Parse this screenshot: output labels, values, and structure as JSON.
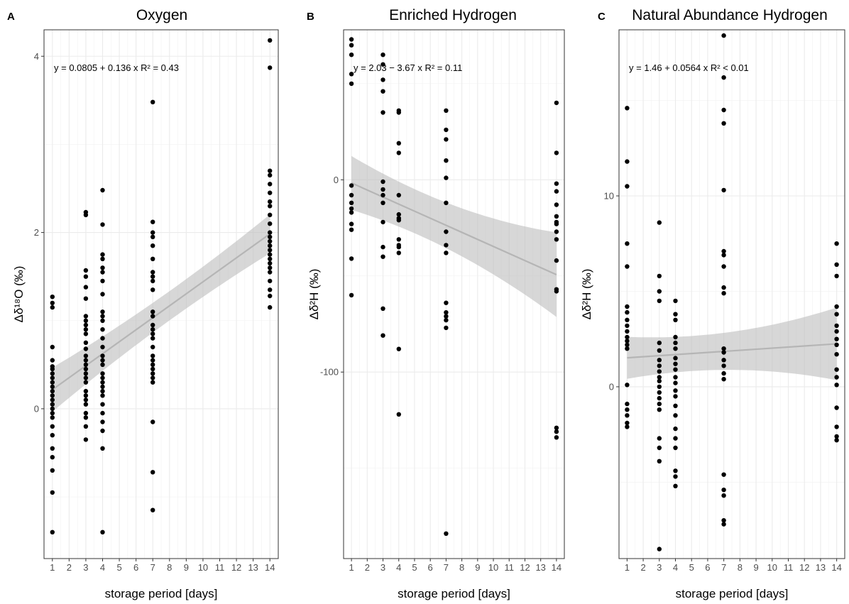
{
  "chart_data": [
    {
      "type": "scatter",
      "letter": "A",
      "title": "Oxygen",
      "xlabel": "storage period [days]",
      "ylabel": "Δδ¹⁸O (‰)",
      "equation": "y = 0.0805 + 0.136 x   R² = 0.43",
      "xlim": [
        0.5,
        14.5
      ],
      "ylim": [
        -1.7,
        4.3
      ],
      "x_ticks": [
        1,
        2,
        3,
        4,
        5,
        6,
        7,
        8,
        9,
        10,
        11,
        12,
        13,
        14
      ],
      "y_ticks": [
        0,
        2,
        4
      ],
      "x_tick_labels": [
        "1",
        "2",
        "3",
        "4",
        "5",
        "6",
        "7",
        "8",
        "9",
        "10",
        "11",
        "12",
        "13",
        "14"
      ],
      "y_tick_labels": [
        "0",
        "2",
        "4"
      ],
      "grid": true,
      "fit": {
        "intercept": 0.0805,
        "slope": 0.136,
        "x_range": [
          1,
          14
        ],
        "ci_x": [
          1,
          14
        ],
        "ci_half": [
          0.25,
          0.22
        ]
      },
      "points": [
        [
          1,
          1.27
        ],
        [
          1,
          1.2
        ],
        [
          1,
          1.15
        ],
        [
          1,
          0.7
        ],
        [
          1,
          0.55
        ],
        [
          1,
          0.48
        ],
        [
          1,
          0.45
        ],
        [
          1,
          0.4
        ],
        [
          1,
          0.35
        ],
        [
          1,
          0.3
        ],
        [
          1,
          0.25
        ],
        [
          1,
          0.2
        ],
        [
          1,
          0.15
        ],
        [
          1,
          0.1
        ],
        [
          1,
          0.05
        ],
        [
          1,
          0.0
        ],
        [
          1,
          -0.05
        ],
        [
          1,
          -0.1
        ],
        [
          1,
          -0.2
        ],
        [
          1,
          -0.3
        ],
        [
          1,
          -0.45
        ],
        [
          1,
          -0.55
        ],
        [
          1,
          -0.7
        ],
        [
          1,
          -0.95
        ],
        [
          1,
          -1.4
        ],
        [
          3,
          2.23
        ],
        [
          3,
          2.2
        ],
        [
          3,
          1.57
        ],
        [
          3,
          1.5
        ],
        [
          3,
          1.38
        ],
        [
          3,
          1.25
        ],
        [
          3,
          1.05
        ],
        [
          3,
          1.0
        ],
        [
          3,
          0.95
        ],
        [
          3,
          0.9
        ],
        [
          3,
          0.85
        ],
        [
          3,
          0.75
        ],
        [
          3,
          0.68
        ],
        [
          3,
          0.6
        ],
        [
          3,
          0.55
        ],
        [
          3,
          0.5
        ],
        [
          3,
          0.45
        ],
        [
          3,
          0.4
        ],
        [
          3,
          0.35
        ],
        [
          3,
          0.3
        ],
        [
          3,
          0.2
        ],
        [
          3,
          0.15
        ],
        [
          3,
          0.1
        ],
        [
          3,
          0.05
        ],
        [
          3,
          -0.05
        ],
        [
          3,
          -0.1
        ],
        [
          3,
          -0.2
        ],
        [
          3,
          -0.35
        ],
        [
          4,
          2.48
        ],
        [
          4,
          2.09
        ],
        [
          4,
          1.75
        ],
        [
          4,
          1.7
        ],
        [
          4,
          1.6
        ],
        [
          4,
          1.55
        ],
        [
          4,
          1.45
        ],
        [
          4,
          1.3
        ],
        [
          4,
          1.1
        ],
        [
          4,
          1.05
        ],
        [
          4,
          1.0
        ],
        [
          4,
          0.9
        ],
        [
          4,
          0.8
        ],
        [
          4,
          0.7
        ],
        [
          4,
          0.6
        ],
        [
          4,
          0.55
        ],
        [
          4,
          0.5
        ],
        [
          4,
          0.4
        ],
        [
          4,
          0.35
        ],
        [
          4,
          0.3
        ],
        [
          4,
          0.25
        ],
        [
          4,
          0.2
        ],
        [
          4,
          0.15
        ],
        [
          4,
          0.05
        ],
        [
          4,
          -0.05
        ],
        [
          4,
          -0.15
        ],
        [
          4,
          -0.25
        ],
        [
          4,
          -0.45
        ],
        [
          4,
          -1.4
        ],
        [
          7,
          3.48
        ],
        [
          7,
          2.12
        ],
        [
          7,
          2.0
        ],
        [
          7,
          1.95
        ],
        [
          7,
          1.85
        ],
        [
          7,
          1.7
        ],
        [
          7,
          1.55
        ],
        [
          7,
          1.5
        ],
        [
          7,
          1.45
        ],
        [
          7,
          1.35
        ],
        [
          7,
          1.1
        ],
        [
          7,
          1.05
        ],
        [
          7,
          0.95
        ],
        [
          7,
          0.9
        ],
        [
          7,
          0.85
        ],
        [
          7,
          0.8
        ],
        [
          7,
          0.7
        ],
        [
          7,
          0.6
        ],
        [
          7,
          0.55
        ],
        [
          7,
          0.5
        ],
        [
          7,
          0.45
        ],
        [
          7,
          0.4
        ],
        [
          7,
          0.35
        ],
        [
          7,
          0.3
        ],
        [
          7,
          -0.15
        ],
        [
          7,
          -0.72
        ],
        [
          7,
          -1.15
        ],
        [
          14,
          4.18
        ],
        [
          14,
          3.87
        ],
        [
          14,
          2.7
        ],
        [
          14,
          2.65
        ],
        [
          14,
          2.55
        ],
        [
          14,
          2.45
        ],
        [
          14,
          2.35
        ],
        [
          14,
          2.3
        ],
        [
          14,
          2.2
        ],
        [
          14,
          2.1
        ],
        [
          14,
          2.0
        ],
        [
          14,
          1.95
        ],
        [
          14,
          1.9
        ],
        [
          14,
          1.85
        ],
        [
          14,
          1.8
        ],
        [
          14,
          1.75
        ],
        [
          14,
          1.7
        ],
        [
          14,
          1.65
        ],
        [
          14,
          1.6
        ],
        [
          14,
          1.55
        ],
        [
          14,
          1.45
        ],
        [
          14,
          1.35
        ],
        [
          14,
          1.28
        ],
        [
          14,
          1.15
        ]
      ]
    },
    {
      "type": "scatter",
      "letter": "B",
      "title": "Enriched Hydrogen",
      "xlabel": "storage period [days]",
      "ylabel": "Δδ²H (‰)",
      "equation": "y = 2.03 − 3.67 x   R² = 0.11",
      "xlim": [
        0.5,
        14.5
      ],
      "ylim": [
        -197,
        78
      ],
      "x_ticks": [
        1,
        2,
        3,
        4,
        5,
        6,
        7,
        8,
        9,
        10,
        11,
        12,
        13,
        14
      ],
      "y_ticks": [
        -100,
        0
      ],
      "x_tick_labels": [
        "1",
        "2",
        "3",
        "4",
        "5",
        "6",
        "7",
        "8",
        "9",
        "10",
        "11",
        "12",
        "13",
        "14"
      ],
      "y_tick_labels": [
        "-100",
        "0"
      ],
      "grid": true,
      "fit": {
        "intercept": 2.03,
        "slope": -3.67,
        "x_range": [
          1,
          14
        ],
        "ci_x": [
          1,
          14
        ],
        "ci_half": [
          14,
          22
        ]
      },
      "points": [
        [
          1,
          73
        ],
        [
          1,
          70
        ],
        [
          1,
          65
        ],
        [
          1,
          55
        ],
        [
          1,
          50
        ],
        [
          1,
          -3
        ],
        [
          1,
          -8
        ],
        [
          1,
          -12
        ],
        [
          1,
          -15
        ],
        [
          1,
          -17
        ],
        [
          1,
          -23
        ],
        [
          1,
          -26
        ],
        [
          1,
          -41
        ],
        [
          1,
          -60
        ],
        [
          3,
          65
        ],
        [
          3,
          60
        ],
        [
          3,
          52
        ],
        [
          3,
          46
        ],
        [
          3,
          35
        ],
        [
          3,
          -1
        ],
        [
          3,
          -5
        ],
        [
          3,
          -8
        ],
        [
          3,
          -12
        ],
        [
          3,
          -22
        ],
        [
          3,
          -35
        ],
        [
          3,
          -40
        ],
        [
          3,
          -67
        ],
        [
          3,
          -81
        ],
        [
          4,
          36
        ],
        [
          4,
          35
        ],
        [
          4,
          19
        ],
        [
          4,
          14
        ],
        [
          4,
          -8
        ],
        [
          4,
          -18
        ],
        [
          4,
          -20
        ],
        [
          4,
          -21
        ],
        [
          4,
          -31
        ],
        [
          4,
          -34
        ],
        [
          4,
          -35
        ],
        [
          4,
          -38
        ],
        [
          4,
          -88
        ],
        [
          4,
          -122
        ],
        [
          7,
          36
        ],
        [
          7,
          26
        ],
        [
          7,
          21
        ],
        [
          7,
          10
        ],
        [
          7,
          1
        ],
        [
          7,
          -12
        ],
        [
          7,
          -27
        ],
        [
          7,
          -34
        ],
        [
          7,
          -38
        ],
        [
          7,
          -64
        ],
        [
          7,
          -69
        ],
        [
          7,
          -71
        ],
        [
          7,
          -73
        ],
        [
          7,
          -77
        ],
        [
          7,
          -184
        ],
        [
          14,
          40
        ],
        [
          14,
          14
        ],
        [
          14,
          -2
        ],
        [
          14,
          -6
        ],
        [
          14,
          -13
        ],
        [
          14,
          -19
        ],
        [
          14,
          -22
        ],
        [
          14,
          -23
        ],
        [
          14,
          -27
        ],
        [
          14,
          -31
        ],
        [
          14,
          -42
        ],
        [
          14,
          -57
        ],
        [
          14,
          -58
        ],
        [
          14,
          -129
        ],
        [
          14,
          -131
        ],
        [
          14,
          -134
        ]
      ]
    },
    {
      "type": "scatter",
      "letter": "C",
      "title": "Natural Abundance Hydrogen",
      "xlabel": "storage period [days]",
      "ylabel": "Δδ²H (‰)",
      "equation": "y = 1.46 + 0.0564 x   R² < 0.01",
      "xlim": [
        0.5,
        14.5
      ],
      "ylim": [
        -9,
        18.7
      ],
      "x_ticks": [
        1,
        2,
        3,
        4,
        5,
        6,
        7,
        8,
        9,
        10,
        11,
        12,
        13,
        14
      ],
      "y_ticks": [
        0,
        10
      ],
      "x_tick_labels": [
        "1",
        "2",
        "3",
        "4",
        "5",
        "6",
        "7",
        "8",
        "9",
        "10",
        "11",
        "12",
        "13",
        "14"
      ],
      "y_tick_labels": [
        "0",
        "10"
      ],
      "grid": true,
      "fit": {
        "intercept": 1.46,
        "slope": 0.0564,
        "x_range": [
          1,
          14
        ],
        "ci_x": [
          1,
          14
        ],
        "ci_half": [
          1.1,
          1.9
        ]
      },
      "points": [
        [
          1,
          14.6
        ],
        [
          1,
          11.8
        ],
        [
          1,
          10.5
        ],
        [
          1,
          7.5
        ],
        [
          1,
          6.3
        ],
        [
          1,
          4.2
        ],
        [
          1,
          3.9
        ],
        [
          1,
          3.5
        ],
        [
          1,
          3.2
        ],
        [
          1,
          2.9
        ],
        [
          1,
          2.6
        ],
        [
          1,
          2.4
        ],
        [
          1,
          2.2
        ],
        [
          1,
          2.0
        ],
        [
          1,
          0.1
        ],
        [
          1,
          -0.9
        ],
        [
          1,
          -1.2
        ],
        [
          1,
          -1.5
        ],
        [
          1,
          -1.9
        ],
        [
          1,
          -2.1
        ],
        [
          3,
          8.6
        ],
        [
          3,
          5.8
        ],
        [
          3,
          5.0
        ],
        [
          3,
          4.5
        ],
        [
          3,
          2.3
        ],
        [
          3,
          1.9
        ],
        [
          3,
          1.4
        ],
        [
          3,
          1.1
        ],
        [
          3,
          0.8
        ],
        [
          3,
          0.5
        ],
        [
          3,
          0.3
        ],
        [
          3,
          0.0
        ],
        [
          3,
          -0.3
        ],
        [
          3,
          -0.6
        ],
        [
          3,
          -0.9
        ],
        [
          3,
          -1.2
        ],
        [
          3,
          -2.7
        ],
        [
          3,
          -3.2
        ],
        [
          3,
          -3.9
        ],
        [
          3,
          -8.5
        ],
        [
          4,
          4.5
        ],
        [
          4,
          3.8
        ],
        [
          4,
          3.5
        ],
        [
          4,
          2.6
        ],
        [
          4,
          2.3
        ],
        [
          4,
          2.0
        ],
        [
          4,
          1.5
        ],
        [
          4,
          1.2
        ],
        [
          4,
          0.9
        ],
        [
          4,
          0.5
        ],
        [
          4,
          0.2
        ],
        [
          4,
          -0.2
        ],
        [
          4,
          -0.5
        ],
        [
          4,
          -1.0
        ],
        [
          4,
          -1.5
        ],
        [
          4,
          -2.2
        ],
        [
          4,
          -2.7
        ],
        [
          4,
          -3.2
        ],
        [
          4,
          -4.4
        ],
        [
          4,
          -4.7
        ],
        [
          4,
          -5.2
        ],
        [
          7,
          18.4
        ],
        [
          7,
          16.2
        ],
        [
          7,
          14.5
        ],
        [
          7,
          13.8
        ],
        [
          7,
          10.3
        ],
        [
          7,
          7.1
        ],
        [
          7,
          6.9
        ],
        [
          7,
          6.3
        ],
        [
          7,
          5.2
        ],
        [
          7,
          4.9
        ],
        [
          7,
          2.0
        ],
        [
          7,
          1.8
        ],
        [
          7,
          1.4
        ],
        [
          7,
          1.1
        ],
        [
          7,
          0.7
        ],
        [
          7,
          0.4
        ],
        [
          7,
          -4.6
        ],
        [
          7,
          -5.4
        ],
        [
          7,
          -5.7
        ],
        [
          7,
          -7.0
        ],
        [
          7,
          -7.2
        ],
        [
          14,
          7.5
        ],
        [
          14,
          6.4
        ],
        [
          14,
          5.8
        ],
        [
          14,
          4.2
        ],
        [
          14,
          3.8
        ],
        [
          14,
          3.2
        ],
        [
          14,
          2.9
        ],
        [
          14,
          2.5
        ],
        [
          14,
          2.2
        ],
        [
          14,
          1.7
        ],
        [
          14,
          0.9
        ],
        [
          14,
          0.5
        ],
        [
          14,
          0.1
        ],
        [
          14,
          -1.1
        ],
        [
          14,
          -2.1
        ],
        [
          14,
          -2.6
        ],
        [
          14,
          -2.8
        ]
      ]
    }
  ]
}
